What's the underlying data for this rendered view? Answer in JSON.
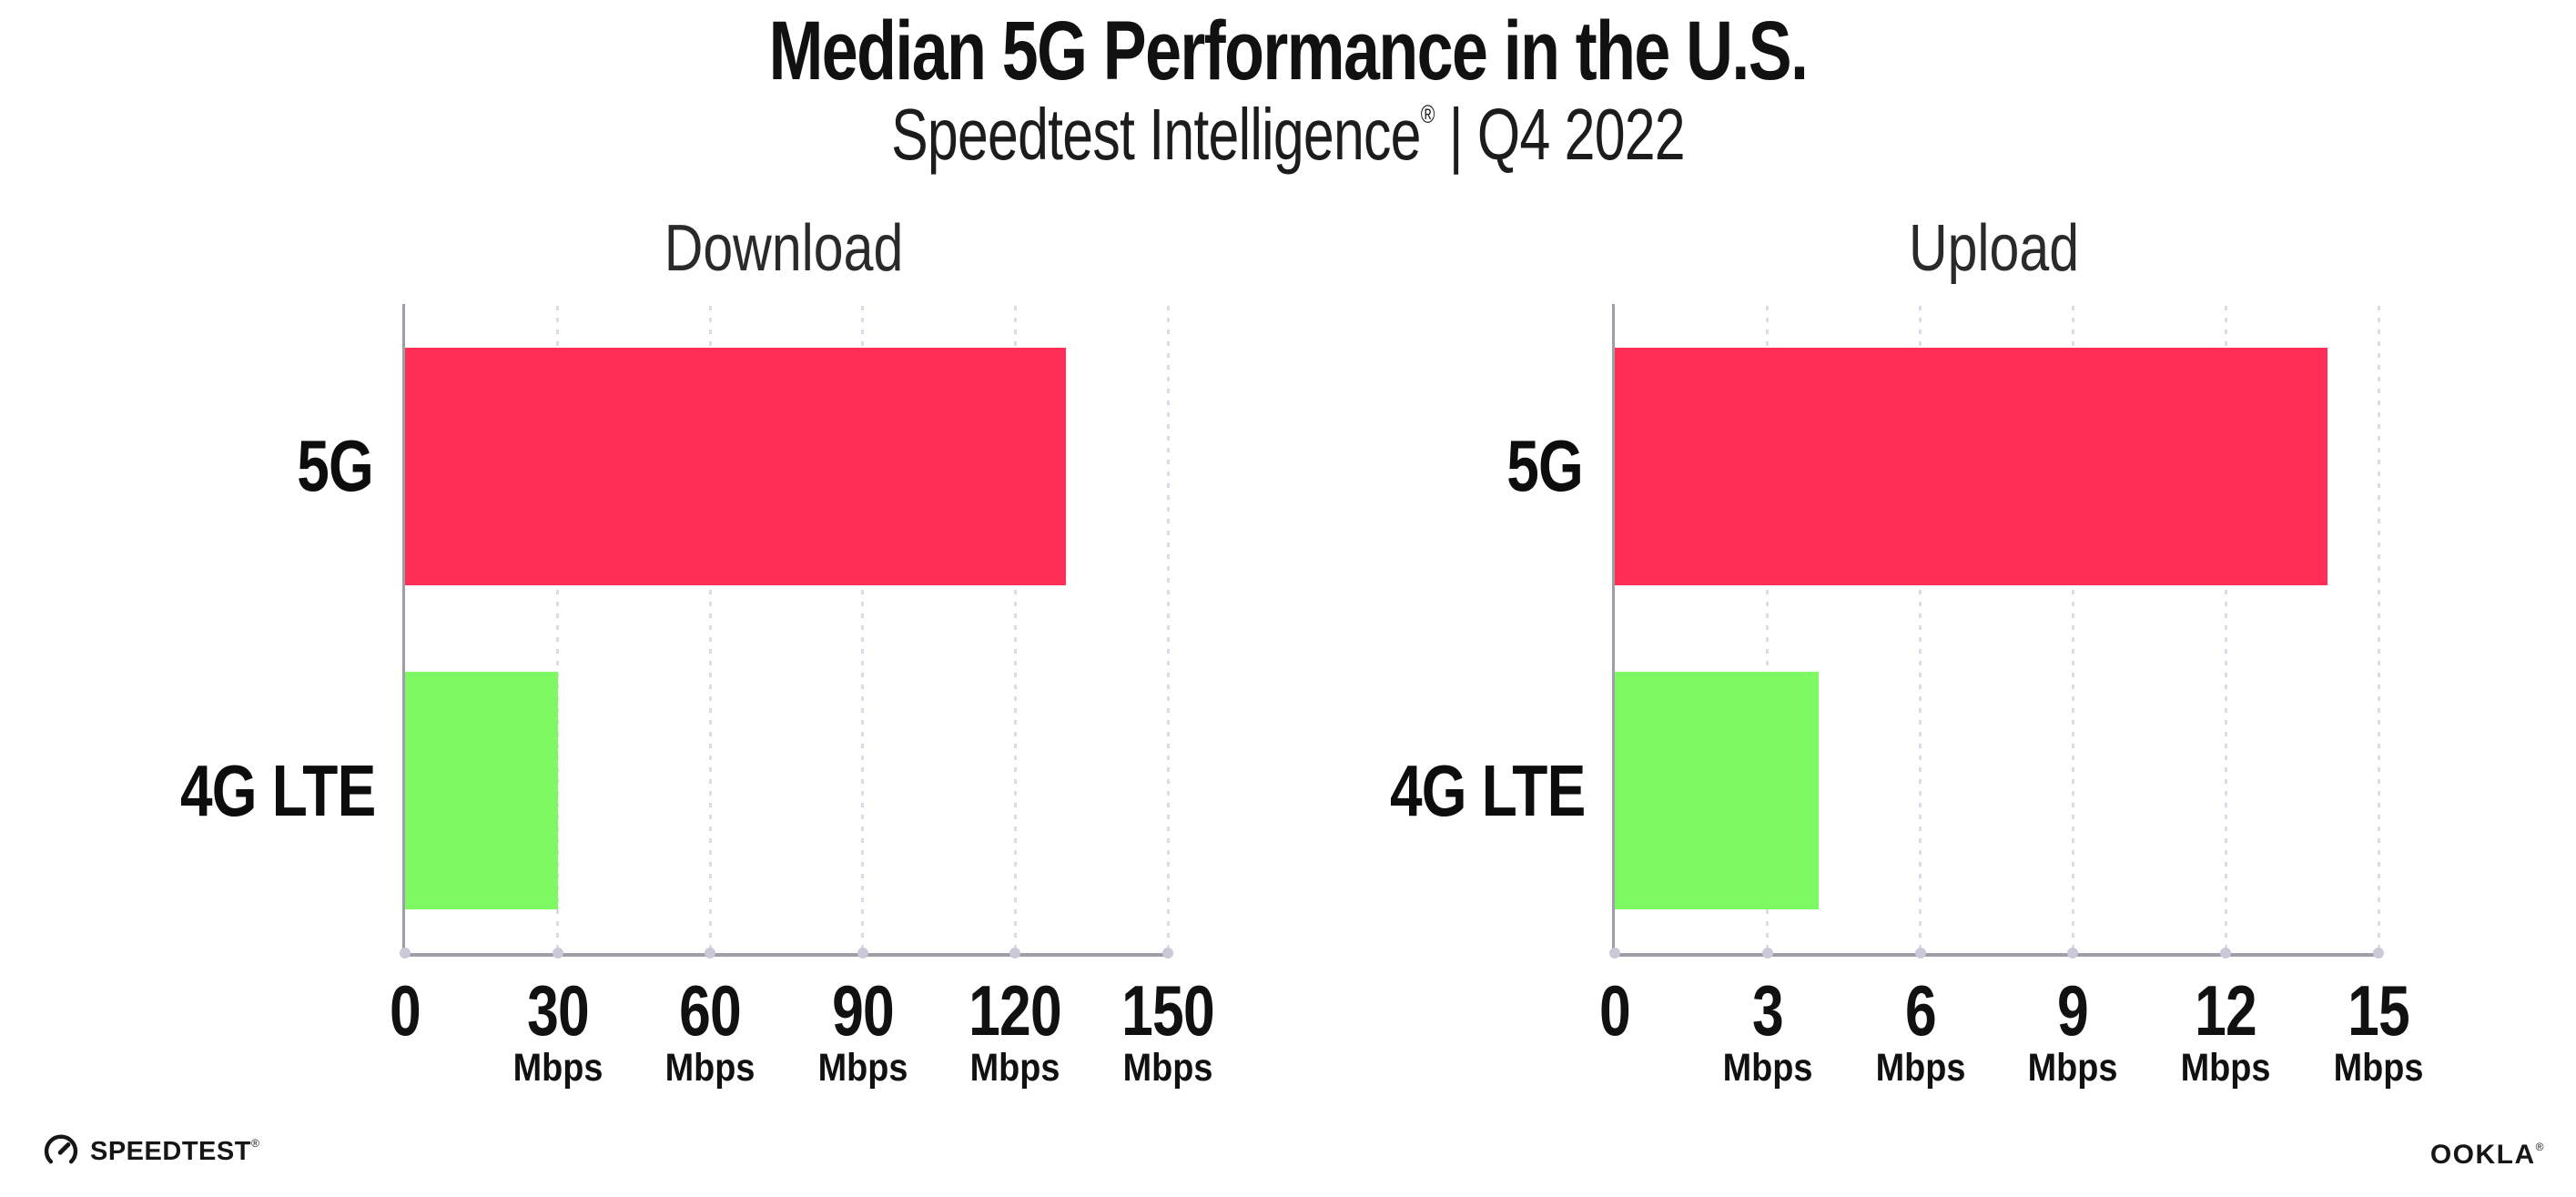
{
  "header": {
    "title": "Median 5G Performance in the U.S.",
    "subtitle_brand": "Speedtest Intelligence",
    "subtitle_reg": "®",
    "subtitle_rest": " | Q4 2022"
  },
  "chart_data": [
    {
      "type": "bar",
      "orientation": "horizontal",
      "title": "Download",
      "categories": [
        "5G",
        "4G LTE"
      ],
      "values": [
        130,
        30
      ],
      "unit": "Mbps",
      "xlim": [
        0,
        150
      ],
      "xticks": [
        0,
        30,
        60,
        90,
        120,
        150
      ],
      "bar_colors": [
        "#ff2e56",
        "#7dfa62"
      ],
      "grid": "dotted-vertical",
      "legend": "none"
    },
    {
      "type": "bar",
      "orientation": "horizontal",
      "title": "Upload",
      "categories": [
        "5G",
        "4G LTE"
      ],
      "values": [
        14,
        4
      ],
      "unit": "Mbps",
      "xlim": [
        0,
        15
      ],
      "xticks": [
        0,
        3,
        6,
        9,
        12,
        15
      ],
      "bar_colors": [
        "#ff2e56",
        "#7dfa62"
      ],
      "grid": "dotted-vertical",
      "legend": "none"
    }
  ],
  "footer": {
    "speedtest_label": "SPEEDTEST",
    "speedtest_reg": "®",
    "ookla_label": "OOKLA",
    "ookla_reg": "®"
  },
  "colors": {
    "bar_5g": "#ff2e56",
    "bar_4g_lte": "#7dfa62",
    "axis": "#9e9ea8",
    "gridline": "#dcdce8",
    "tick_dot": "#c9c9d8",
    "text": "#111111"
  }
}
